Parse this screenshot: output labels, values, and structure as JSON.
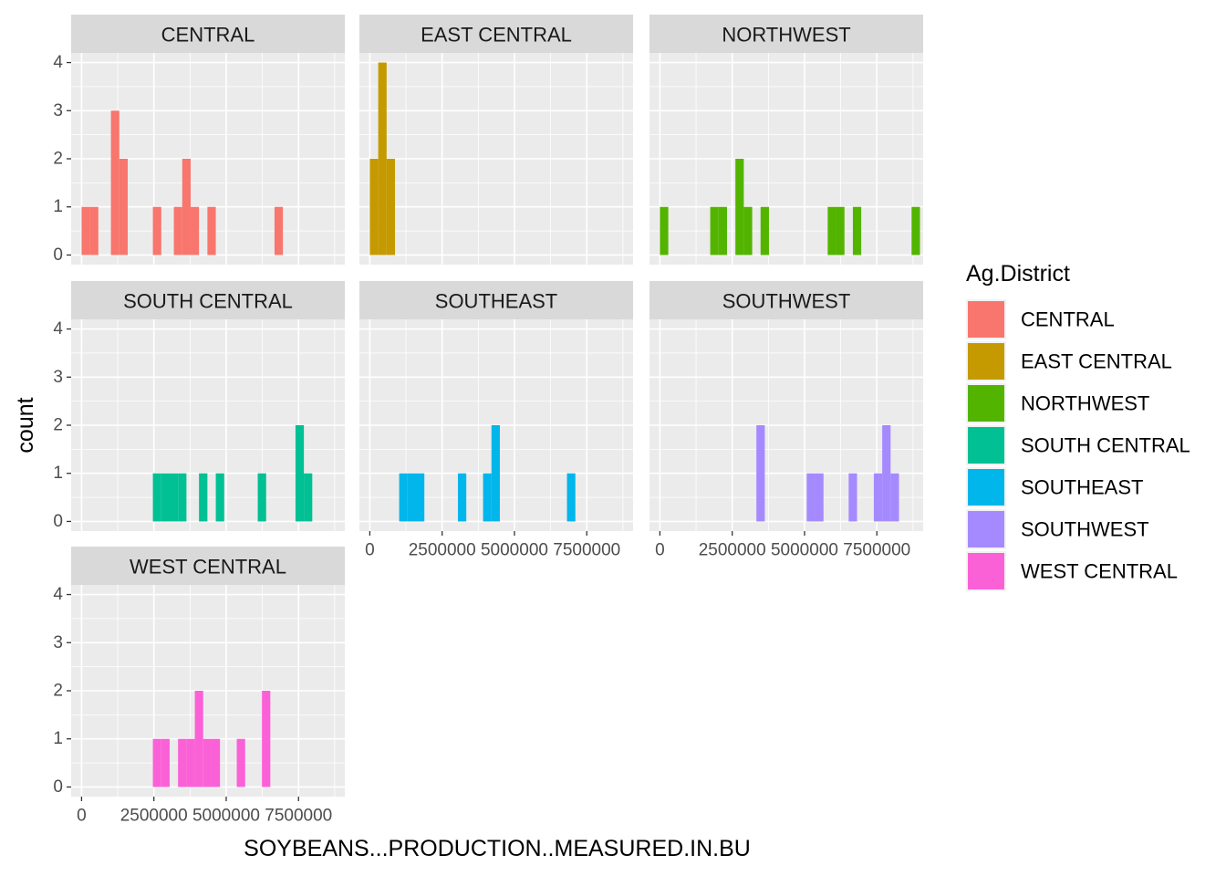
{
  "chart_data": {
    "type": "bar",
    "subtype": "faceted-histogram",
    "xlabel": "SOYBEANS...PRODUCTION..MEASURED.IN.BU",
    "ylabel": "count",
    "x_ticks": [
      0,
      2500000,
      5000000,
      7500000
    ],
    "x_tick_labels": [
      "0",
      "2500000",
      "5000000",
      "7500000"
    ],
    "y_ticks": [
      0,
      1,
      2,
      3,
      4
    ],
    "y_tick_labels": [
      "0",
      "1",
      "2",
      "3",
      "4"
    ],
    "xlim": [
      -360000,
      9100000
    ],
    "ylim": [
      -0.2,
      4.2
    ],
    "bin_width": 290000,
    "grid": true,
    "legend": {
      "title": "Ag.District",
      "position": "right",
      "entries": [
        {
          "name": "CENTRAL",
          "color": "#F8766D"
        },
        {
          "name": "EAST CENTRAL",
          "color": "#C49A00"
        },
        {
          "name": "NORTHWEST",
          "color": "#53B400"
        },
        {
          "name": "SOUTH CENTRAL",
          "color": "#00C094"
        },
        {
          "name": "SOUTHEAST",
          "color": "#00B6EB"
        },
        {
          "name": "SOUTHWEST",
          "color": "#A58AFF"
        },
        {
          "name": "WEST CENTRAL",
          "color": "#FB61D7"
        }
      ]
    },
    "facets": [
      {
        "name": "CENTRAL",
        "color": "#F8766D",
        "bins": [
          [
            145000,
            1
          ],
          [
            435000,
            1
          ],
          [
            1160000,
            3
          ],
          [
            1450000,
            2
          ],
          [
            2610000,
            1
          ],
          [
            3335000,
            1
          ],
          [
            3625000,
            2
          ],
          [
            3915000,
            1
          ],
          [
            4495000,
            1
          ],
          [
            6815000,
            1
          ]
        ]
      },
      {
        "name": "EAST CENTRAL",
        "color": "#C49A00",
        "bins": [
          [
            145000,
            2
          ],
          [
            435000,
            4
          ],
          [
            725000,
            2
          ]
        ]
      },
      {
        "name": "NORTHWEST",
        "color": "#53B400",
        "bins": [
          [
            145000,
            1
          ],
          [
            1885000,
            1
          ],
          [
            2175000,
            1
          ],
          [
            2755000,
            2
          ],
          [
            3045000,
            1
          ],
          [
            3625000,
            1
          ],
          [
            5945000,
            1
          ],
          [
            6235000,
            1
          ],
          [
            6815000,
            1
          ],
          [
            8845000,
            1
          ]
        ]
      },
      {
        "name": "SOUTH CENTRAL",
        "color": "#00C094",
        "bins": [
          [
            2610000,
            1
          ],
          [
            2900000,
            1
          ],
          [
            3190000,
            1
          ],
          [
            3480000,
            1
          ],
          [
            4205000,
            1
          ],
          [
            4785000,
            1
          ],
          [
            6235000,
            1
          ],
          [
            7540000,
            2
          ],
          [
            7830000,
            1
          ]
        ]
      },
      {
        "name": "SOUTHEAST",
        "color": "#00B6EB",
        "bins": [
          [
            1160000,
            1
          ],
          [
            1450000,
            1
          ],
          [
            1740000,
            1
          ],
          [
            3190000,
            1
          ],
          [
            4060000,
            1
          ],
          [
            4350000,
            2
          ],
          [
            6960000,
            1
          ]
        ]
      },
      {
        "name": "SOUTHWEST",
        "color": "#A58AFF",
        "bins": [
          [
            3480000,
            2
          ],
          [
            5220000,
            1
          ],
          [
            5510000,
            1
          ],
          [
            6670000,
            1
          ],
          [
            7540000,
            1
          ],
          [
            7830000,
            2
          ],
          [
            8120000,
            1
          ]
        ]
      },
      {
        "name": "WEST CENTRAL",
        "color": "#FB61D7",
        "bins": [
          [
            2610000,
            1
          ],
          [
            2900000,
            1
          ],
          [
            3480000,
            1
          ],
          [
            3770000,
            1
          ],
          [
            4060000,
            2
          ],
          [
            4350000,
            1
          ],
          [
            4640000,
            1
          ],
          [
            5510000,
            1
          ],
          [
            6380000,
            2
          ]
        ]
      }
    ]
  }
}
